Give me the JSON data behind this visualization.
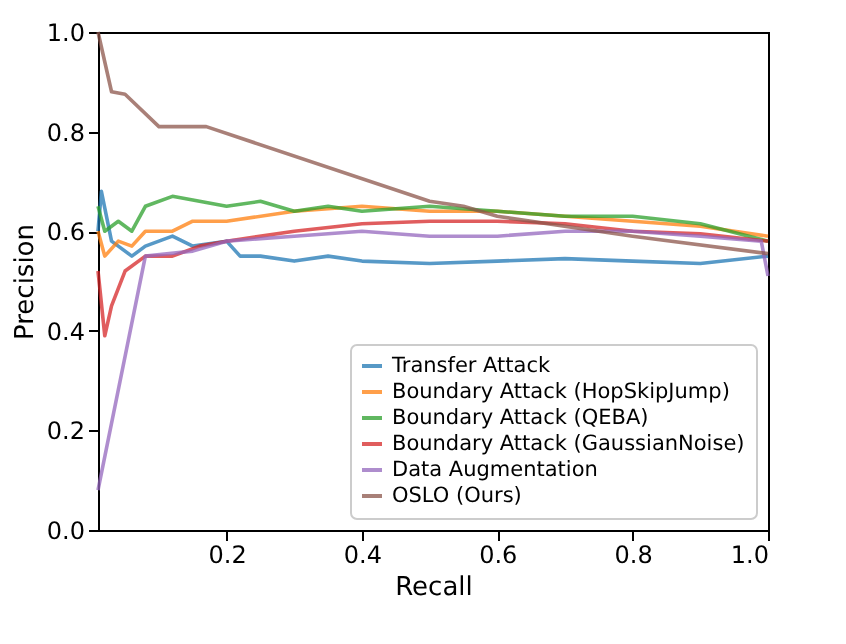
{
  "chart_data": {
    "type": "line",
    "xlabel": "Recall",
    "ylabel": "Precision",
    "xlim": [
      0.01,
      1.0
    ],
    "ylim": [
      0.0,
      1.0
    ],
    "xticks": [
      0.2,
      0.4,
      0.6,
      0.8,
      {
        "value": 1,
        "label": "1.0"
      }
    ],
    "yticks": [
      {
        "value": 0,
        "label": "0.0"
      },
      0.2,
      0.4,
      0.6,
      0.8,
      {
        "value": 1,
        "label": "1.0"
      }
    ],
    "grid": false,
    "legend": "bottom right",
    "marker": "none",
    "line_style": "solid",
    "series": [
      {
        "name": "Transfer Attack",
        "color": "#1f77b4",
        "x": [
          0.01,
          0.015,
          0.03,
          0.06,
          0.08,
          0.1,
          0.12,
          0.15,
          0.2,
          0.22,
          0.25,
          0.3,
          0.35,
          0.4,
          0.5,
          0.6,
          0.7,
          0.8,
          0.9,
          1.0
        ],
        "values": [
          0.6,
          0.68,
          0.58,
          0.55,
          0.57,
          0.58,
          0.59,
          0.57,
          0.58,
          0.55,
          0.55,
          0.54,
          0.55,
          0.54,
          0.535,
          0.54,
          0.545,
          0.54,
          0.535,
          0.55
        ]
      },
      {
        "name": "Boundary Attack (HopSkipJump)",
        "color": "#ff7f0e",
        "x": [
          0.01,
          0.02,
          0.04,
          0.06,
          0.08,
          0.12,
          0.15,
          0.2,
          0.3,
          0.4,
          0.5,
          0.6,
          0.7,
          0.8,
          0.9,
          1.0
        ],
        "values": [
          0.6,
          0.55,
          0.58,
          0.57,
          0.6,
          0.6,
          0.62,
          0.62,
          0.64,
          0.65,
          0.64,
          0.64,
          0.63,
          0.62,
          0.61,
          0.59
        ]
      },
      {
        "name": "Boundary Attack (QEBA)",
        "color": "#2ca02c",
        "x": [
          0.01,
          0.02,
          0.04,
          0.06,
          0.08,
          0.12,
          0.16,
          0.2,
          0.25,
          0.3,
          0.35,
          0.4,
          0.5,
          0.6,
          0.7,
          0.8,
          0.9,
          1.0
        ],
        "values": [
          0.65,
          0.6,
          0.62,
          0.6,
          0.65,
          0.67,
          0.66,
          0.65,
          0.66,
          0.64,
          0.65,
          0.64,
          0.65,
          0.64,
          0.63,
          0.63,
          0.615,
          0.58
        ]
      },
      {
        "name": "Boundary Attack (GaussianNoise)",
        "color": "#d62728",
        "x": [
          0.01,
          0.02,
          0.03,
          0.05,
          0.08,
          0.12,
          0.16,
          0.2,
          0.3,
          0.4,
          0.5,
          0.6,
          0.7,
          0.8,
          0.9,
          1.0
        ],
        "values": [
          0.52,
          0.39,
          0.45,
          0.52,
          0.55,
          0.55,
          0.57,
          0.58,
          0.6,
          0.615,
          0.62,
          0.62,
          0.615,
          0.6,
          0.595,
          0.58
        ]
      },
      {
        "name": "Data Augmentation",
        "color": "#9467bd",
        "x": [
          0.01,
          0.08,
          0.15,
          0.2,
          0.3,
          0.4,
          0.5,
          0.6,
          0.7,
          0.8,
          0.9,
          0.99,
          1.0
        ],
        "values": [
          0.08,
          0.55,
          0.56,
          0.58,
          0.59,
          0.6,
          0.59,
          0.59,
          0.6,
          0.6,
          0.59,
          0.58,
          0.51
        ]
      },
      {
        "name": "OSLO (Ours)",
        "color": "#8c564b",
        "x": [
          0.01,
          0.03,
          0.05,
          0.1,
          0.17,
          0.5,
          0.55,
          0.6,
          0.8,
          1.0
        ],
        "values": [
          1.0,
          0.88,
          0.875,
          0.81,
          0.81,
          0.66,
          0.65,
          0.63,
          0.59,
          0.555
        ]
      }
    ]
  }
}
